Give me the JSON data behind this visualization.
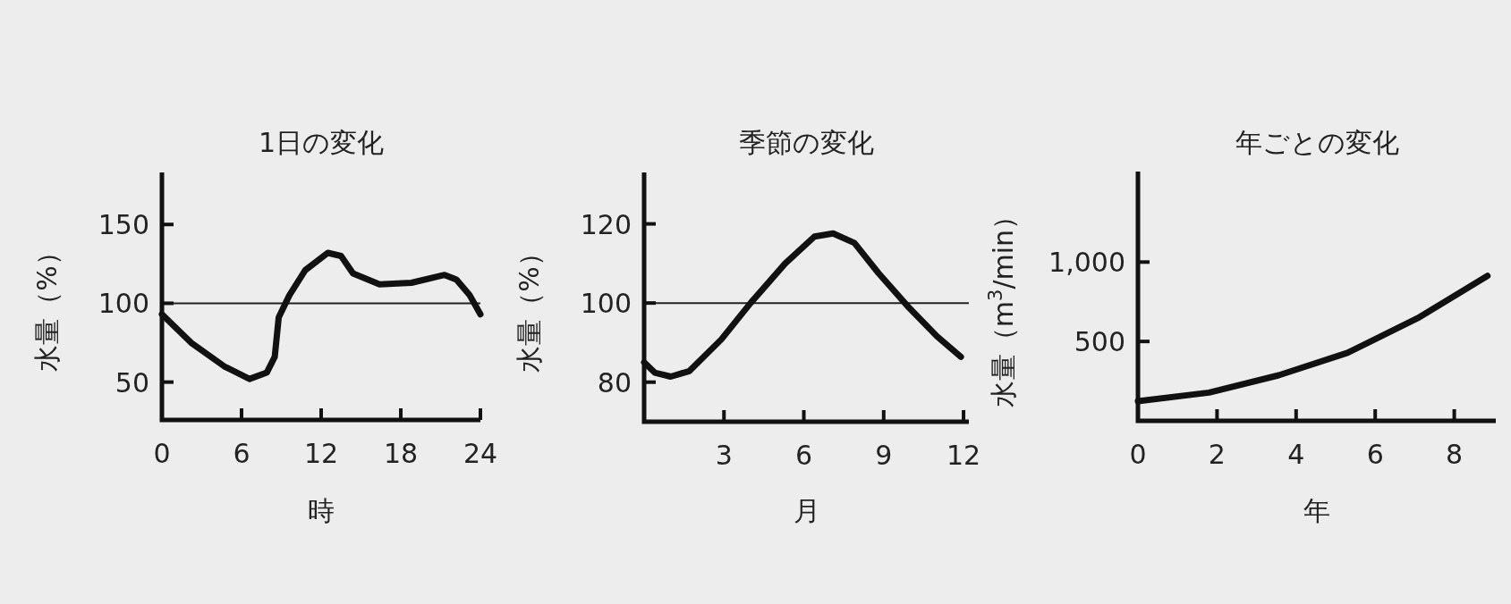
{
  "chart_data": [
    {
      "type": "line",
      "title": "1日の変化",
      "xlabel": "時",
      "ylabel": "水量（%）",
      "xlim": [
        0,
        24
      ],
      "ylim": [
        26,
        183
      ],
      "xticks": [
        0,
        6,
        12,
        18,
        24
      ],
      "yticks": [
        50,
        100,
        150
      ],
      "ref_lines": [
        {
          "axis": "y",
          "value": 100
        }
      ],
      "series": [
        {
          "color": "#111111",
          "x": [
            0,
            2.2,
            4.7,
            6.6,
            7.9,
            8.5,
            8.8,
            9.6,
            10.8,
            12.5,
            13.5,
            14.4,
            16.4,
            18.8,
            21.3,
            22.2,
            23.2,
            24
          ],
          "values": [
            93,
            75,
            60,
            52,
            56,
            66,
            91,
            105,
            121,
            132,
            130,
            119,
            112,
            113,
            118,
            115,
            105,
            93
          ]
        }
      ]
    },
    {
      "type": "line",
      "title": "季節の変化",
      "xlabel": "月",
      "ylabel": "水量（%）",
      "xlim": [
        0,
        12.2
      ],
      "ylim": [
        70,
        133
      ],
      "xticks": [
        3,
        6,
        9,
        12
      ],
      "yticks": [
        80,
        100,
        120
      ],
      "ref_lines": [
        {
          "axis": "y",
          "value": 100
        }
      ],
      "series": [
        {
          "color": "#111111",
          "x": [
            0,
            0.4,
            1.0,
            1.7,
            2.9,
            4.0,
            5.3,
            6.4,
            7.1,
            7.9,
            8.8,
            9.9,
            11.0,
            11.9
          ],
          "values": [
            85,
            82.4,
            81.4,
            82.8,
            90.8,
            100,
            110,
            116.8,
            117.6,
            115.2,
            107.6,
            99.2,
            91.6,
            86.4
          ]
        }
      ]
    },
    {
      "type": "line",
      "title": "年ごとの変化",
      "xlabel": "年",
      "ylabel": "水量（m$^{3}$/min）",
      "xlim": [
        0,
        9.05
      ],
      "ylim": [
        0,
        1570
      ],
      "xticks": [
        0,
        2,
        4,
        6,
        8
      ],
      "yticks": [
        500,
        {
          "value": 1000,
          "label": "1,000"
        }
      ],
      "series": [
        {
          "color": "#111111",
          "x": [
            0,
            1.8,
            3.56,
            5.3,
            7.07,
            8.84
          ],
          "values": [
            124,
            178,
            287,
            428,
            646,
            913
          ]
        }
      ]
    }
  ]
}
